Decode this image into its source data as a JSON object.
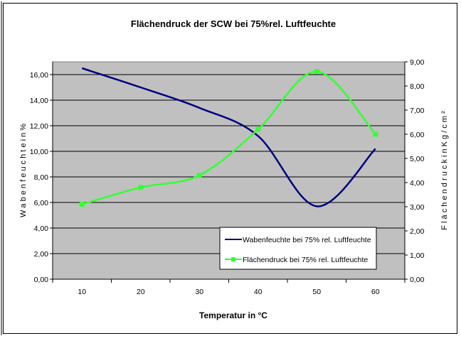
{
  "chart_data": {
    "type": "line",
    "title": "Flächendruck der SCW bei 75%rel. Luftfeuchte",
    "xlabel": "Temperatur in °C",
    "ylabel_left": "W a b e n f e u c h t e  i n  %",
    "ylabel_right": "F l ä c h e n d r u c k  i n  K g / c m ²",
    "categories": [
      "10",
      "20",
      "30",
      "40",
      "50",
      "60"
    ],
    "y_left": {
      "range": [
        0,
        17
      ],
      "ticks": [
        "0,00",
        "2,00",
        "4,00",
        "6,00",
        "8,00",
        "10,00",
        "12,00",
        "14,00",
        "16,00"
      ]
    },
    "y_right": {
      "range": [
        0,
        9
      ],
      "ticks": [
        "0,00",
        "1,00",
        "2,00",
        "3,00",
        "4,00",
        "5,00",
        "6,00",
        "7,00",
        "8,00",
        "9,00"
      ]
    },
    "grid": true,
    "legend_position": "bottom-right",
    "series": [
      {
        "name": "Wabenfeuchte bei 75% rel. Luftfeuchte",
        "axis": "left",
        "color": "#000080",
        "marker": "none",
        "values": [
          16.5,
          15.0,
          13.4,
          11.2,
          5.7,
          10.2
        ]
      },
      {
        "name": "Flächendruck bei 75% rel. Luftfeuchte",
        "axis": "right",
        "color": "#33ff33",
        "marker": "square",
        "values": [
          3.1,
          3.8,
          4.3,
          6.2,
          8.6,
          6.0
        ]
      }
    ]
  }
}
